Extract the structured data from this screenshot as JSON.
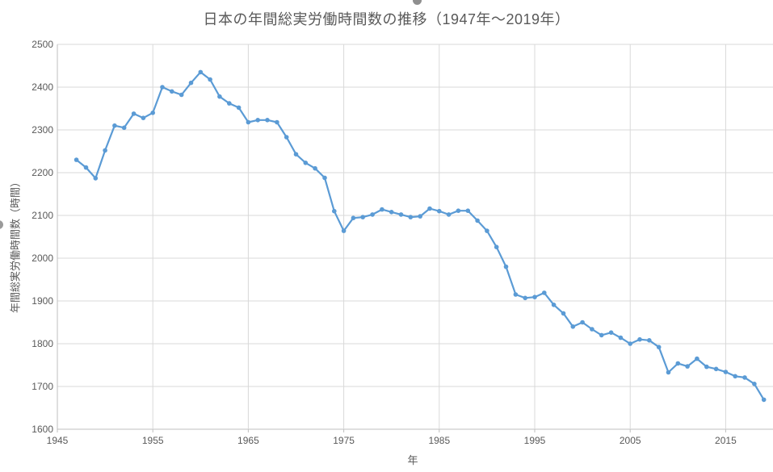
{
  "chart_data": {
    "type": "line",
    "title": "日本の年間総実労働時間数の推移（1947年～2019年）",
    "xlabel": "年",
    "ylabel": "年間総実労働時間数（時間）",
    "x": [
      1947,
      1948,
      1949,
      1950,
      1951,
      1952,
      1953,
      1954,
      1955,
      1956,
      1957,
      1958,
      1959,
      1960,
      1961,
      1962,
      1963,
      1964,
      1965,
      1966,
      1967,
      1968,
      1969,
      1970,
      1971,
      1972,
      1973,
      1974,
      1975,
      1976,
      1977,
      1978,
      1979,
      1980,
      1981,
      1982,
      1983,
      1984,
      1985,
      1986,
      1987,
      1988,
      1989,
      1990,
      1991,
      1992,
      1993,
      1994,
      1995,
      1996,
      1997,
      1998,
      1999,
      2000,
      2001,
      2002,
      2003,
      2004,
      2005,
      2006,
      2007,
      2008,
      2009,
      2010,
      2011,
      2012,
      2013,
      2014,
      2015,
      2016,
      2017,
      2018,
      2019
    ],
    "values": [
      2230,
      2212,
      2187,
      2252,
      2310,
      2305,
      2338,
      2328,
      2340,
      2400,
      2390,
      2382,
      2410,
      2435,
      2418,
      2378,
      2362,
      2352,
      2318,
      2323,
      2323,
      2318,
      2283,
      2243,
      2223,
      2210,
      2188,
      2110,
      2064,
      2094,
      2096,
      2102,
      2114,
      2108,
      2102,
      2096,
      2098,
      2116,
      2110,
      2102,
      2111,
      2111,
      2088,
      2064,
      2026,
      1980,
      1915,
      1907,
      1909,
      1919,
      1891,
      1871,
      1840,
      1850,
      1834,
      1820,
      1826,
      1814,
      1800,
      1810,
      1808,
      1792,
      1733,
      1754,
      1747,
      1765,
      1746,
      1741,
      1734,
      1724,
      1721,
      1706,
      1669
    ],
    "xlim": [
      1945,
      2020
    ],
    "ylim": [
      1600,
      2500
    ],
    "x_ticks": [
      "1945",
      "1955",
      "1965",
      "1975",
      "1985",
      "1995",
      "2005",
      "2015"
    ],
    "y_ticks": [
      "1600",
      "1700",
      "1800",
      "1900",
      "2000",
      "2100",
      "2200",
      "2300",
      "2400",
      "2500"
    ],
    "grid": true,
    "legend": "none",
    "marker": "circle",
    "colors": {
      "series": "#5B9BD5",
      "gridline": "#D9D9D9",
      "axis_line": "#BFBFBF",
      "text": "#595959",
      "title_text": "#595959"
    }
  }
}
